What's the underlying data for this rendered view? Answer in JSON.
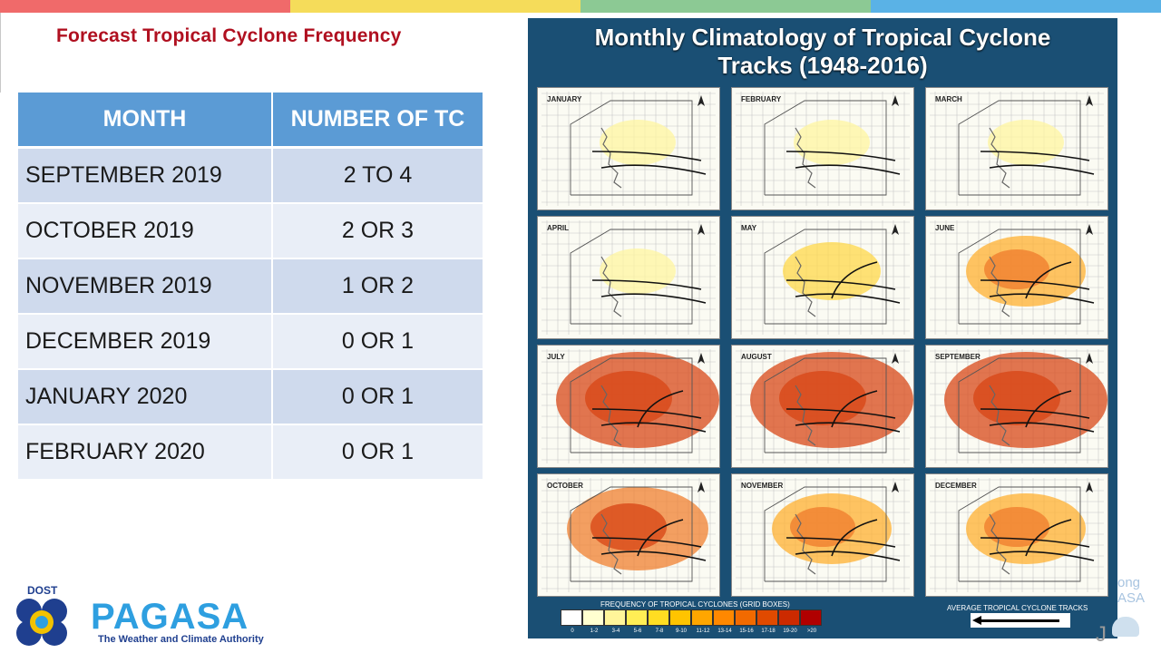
{
  "colors": {
    "topbar": [
      "#f06a6a",
      "#f5dc5a",
      "#8cc994",
      "#5ab2e6"
    ],
    "title_red": "#b01020",
    "header_blue": "#5b9bd5",
    "panel_bg": "#1a4f74"
  },
  "slide": {
    "title": "Forecast Tropical Cyclone Frequency"
  },
  "table": {
    "headers": [
      "MONTH",
      "NUMBER OF TC"
    ],
    "rows": [
      {
        "month": "SEPTEMBER 2019",
        "count": "2 TO 4"
      },
      {
        "month": "OCTOBER 2019",
        "count": "2 OR 3"
      },
      {
        "month": "NOVEMBER 2019",
        "count": "1 OR 2"
      },
      {
        "month": "DECEMBER 2019",
        "count": "0 OR 1"
      },
      {
        "month": "JANUARY 2020",
        "count": "0 OR 1"
      },
      {
        "month": "FEBRUARY 2020",
        "count": "0 OR 1"
      }
    ]
  },
  "logo": {
    "dost": "DOST",
    "name": "PAGASA",
    "tagline": "The Weather and Climate Authority"
  },
  "climatology": {
    "title_line1": "Monthly Climatology of Tropical Cyclone",
    "title_line2": "Tracks (1948-2016)",
    "months": [
      {
        "name": "JANUARY",
        "density": 1
      },
      {
        "name": "FEBRUARY",
        "density": 1
      },
      {
        "name": "MARCH",
        "density": 1
      },
      {
        "name": "APRIL",
        "density": 1
      },
      {
        "name": "MAY",
        "density": 2
      },
      {
        "name": "JUNE",
        "density": 3
      },
      {
        "name": "JULY",
        "density": 5
      },
      {
        "name": "AUGUST",
        "density": 5
      },
      {
        "name": "SEPTEMBER",
        "density": 5
      },
      {
        "name": "OCTOBER",
        "density": 4
      },
      {
        "name": "NOVEMBER",
        "density": 3
      },
      {
        "name": "DECEMBER",
        "density": 3
      }
    ],
    "legend_title": "FREQUENCY OF TROPICAL CYCLONES (GRID BOXES)",
    "legend_bins": [
      "0",
      "1-2",
      "3-4",
      "5-6",
      "7-8",
      "9-10",
      "11-12",
      "13-14",
      "15-16",
      "17-18",
      "19-20",
      ">20"
    ],
    "legend_colors": [
      "#ffffff",
      "#ffffd0",
      "#fff59a",
      "#ffee55",
      "#ffdd22",
      "#ffc400",
      "#ffa600",
      "#ff8800",
      "#f26a00",
      "#e04a00",
      "#cc2a00",
      "#b00000"
    ],
    "tracks_label": "AVERAGE TROPICAL CYCLONE TRACKS"
  },
  "overflow_text": {
    "line1": "ong",
    "line2": "ASA",
    "mark": "J"
  }
}
